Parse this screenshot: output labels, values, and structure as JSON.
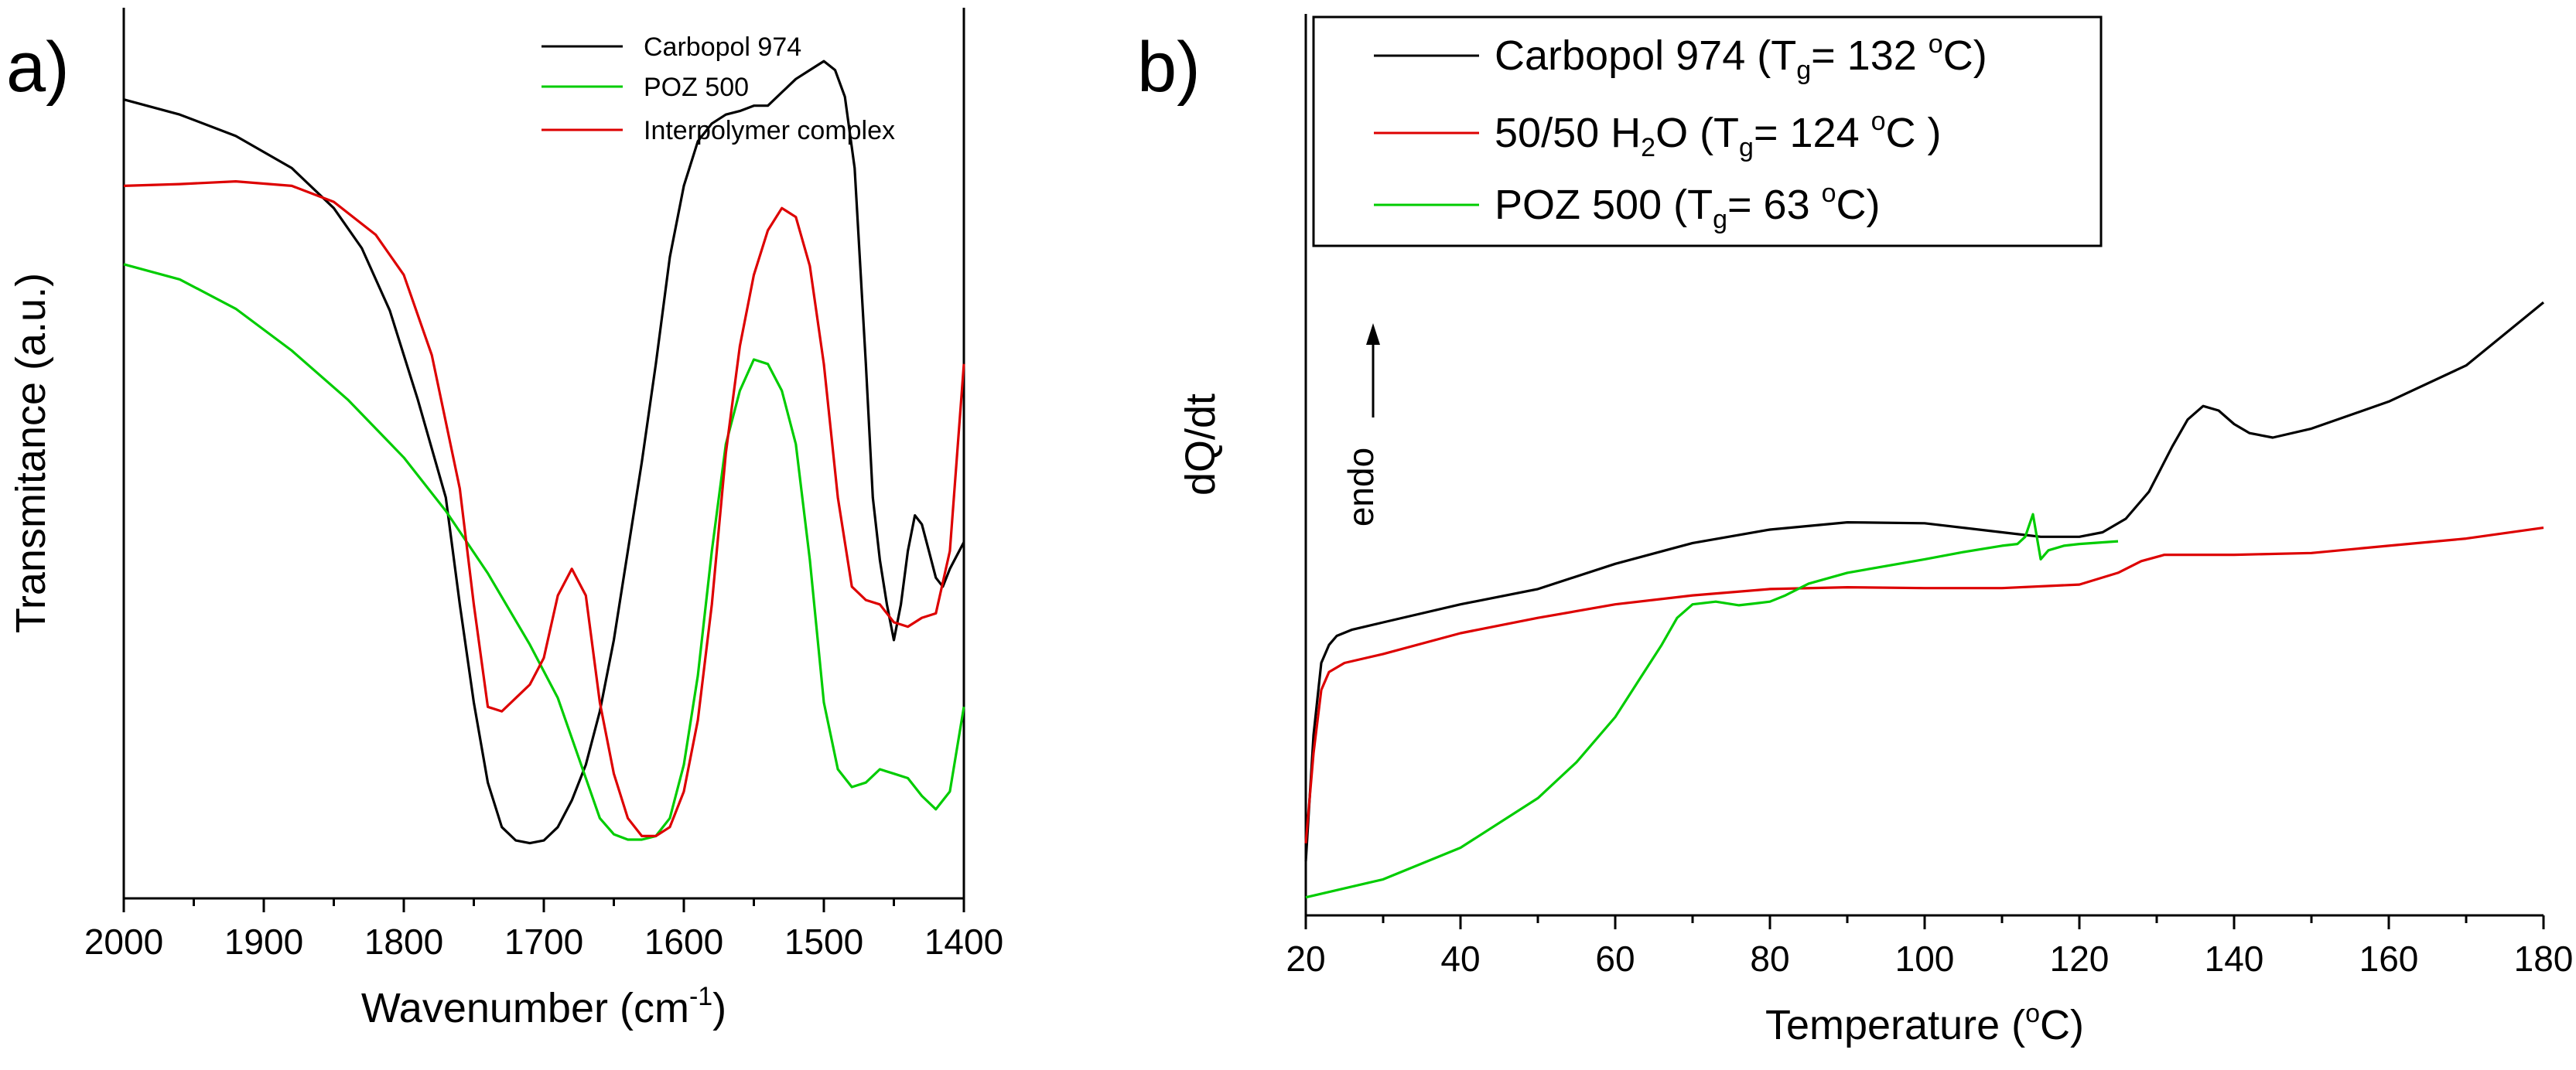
{
  "chart_data": [
    {
      "panel": "a)",
      "type": "line",
      "xlabel": "Wavenumber (cm",
      "xlabel_sup": "-1",
      "xlabel_end": ")",
      "ylabel": "Transmitance (a.u.)",
      "xlim": [
        2000,
        1400
      ],
      "ylim": [
        0,
        1
      ],
      "x_ticks": [
        2000,
        1900,
        1800,
        1700,
        1600,
        1500,
        1400
      ],
      "legend": [
        "Carbopol 974",
        "POZ 500",
        "Interpolymer complex"
      ],
      "series": [
        {
          "name": "Carbopol 974",
          "color": "#000000",
          "points": [
            [
              2000,
              0.897
            ],
            [
              1960,
              0.88
            ],
            [
              1920,
              0.856
            ],
            [
              1880,
              0.82
            ],
            [
              1850,
              0.775
            ],
            [
              1830,
              0.73
            ],
            [
              1810,
              0.66
            ],
            [
              1790,
              0.56
            ],
            [
              1770,
              0.45
            ],
            [
              1760,
              0.33
            ],
            [
              1750,
              0.22
            ],
            [
              1740,
              0.13
            ],
            [
              1730,
              0.08
            ],
            [
              1720,
              0.065
            ],
            [
              1710,
              0.062
            ],
            [
              1700,
              0.065
            ],
            [
              1690,
              0.08
            ],
            [
              1680,
              0.11
            ],
            [
              1670,
              0.15
            ],
            [
              1660,
              0.21
            ],
            [
              1650,
              0.29
            ],
            [
              1640,
              0.39
            ],
            [
              1630,
              0.49
            ],
            [
              1620,
              0.6
            ],
            [
              1610,
              0.72
            ],
            [
              1600,
              0.8
            ],
            [
              1590,
              0.85
            ],
            [
              1580,
              0.87
            ],
            [
              1570,
              0.88
            ],
            [
              1560,
              0.884
            ],
            [
              1550,
              0.89
            ],
            [
              1540,
              0.89
            ],
            [
              1530,
              0.905
            ],
            [
              1520,
              0.92
            ],
            [
              1510,
              0.93
            ],
            [
              1500,
              0.94
            ],
            [
              1492,
              0.93
            ],
            [
              1485,
              0.9
            ],
            [
              1478,
              0.82
            ],
            [
              1470,
              0.6
            ],
            [
              1465,
              0.45
            ],
            [
              1460,
              0.38
            ],
            [
              1455,
              0.33
            ],
            [
              1450,
              0.29
            ],
            [
              1445,
              0.33
            ],
            [
              1440,
              0.39
            ],
            [
              1435,
              0.43
            ],
            [
              1430,
              0.42
            ],
            [
              1425,
              0.39
            ],
            [
              1420,
              0.36
            ],
            [
              1415,
              0.35
            ],
            [
              1410,
              0.37
            ],
            [
              1400,
              0.4
            ]
          ]
        },
        {
          "name": "POZ 500",
          "color": "#00cc00",
          "points": [
            [
              2000,
              0.712
            ],
            [
              1960,
              0.695
            ],
            [
              1920,
              0.662
            ],
            [
              1880,
              0.615
            ],
            [
              1840,
              0.56
            ],
            [
              1800,
              0.495
            ],
            [
              1770,
              0.435
            ],
            [
              1740,
              0.365
            ],
            [
              1710,
              0.285
            ],
            [
              1690,
              0.225
            ],
            [
              1670,
              0.135
            ],
            [
              1660,
              0.09
            ],
            [
              1650,
              0.072
            ],
            [
              1640,
              0.066
            ],
            [
              1630,
              0.066
            ],
            [
              1620,
              0.07
            ],
            [
              1610,
              0.09
            ],
            [
              1600,
              0.15
            ],
            [
              1590,
              0.25
            ],
            [
              1580,
              0.39
            ],
            [
              1570,
              0.51
            ],
            [
              1560,
              0.57
            ],
            [
              1550,
              0.605
            ],
            [
              1540,
              0.6
            ],
            [
              1530,
              0.57
            ],
            [
              1520,
              0.51
            ],
            [
              1510,
              0.38
            ],
            [
              1500,
              0.22
            ],
            [
              1490,
              0.145
            ],
            [
              1480,
              0.125
            ],
            [
              1470,
              0.13
            ],
            [
              1460,
              0.145
            ],
            [
              1450,
              0.14
            ],
            [
              1440,
              0.135
            ],
            [
              1430,
              0.115
            ],
            [
              1420,
              0.1
            ],
            [
              1410,
              0.12
            ],
            [
              1400,
              0.215
            ]
          ]
        },
        {
          "name": "Interpolymer complex",
          "color": "#dd0000",
          "points": [
            [
              2000,
              0.8
            ],
            [
              1960,
              0.802
            ],
            [
              1920,
              0.805
            ],
            [
              1880,
              0.8
            ],
            [
              1850,
              0.782
            ],
            [
              1820,
              0.745
            ],
            [
              1800,
              0.7
            ],
            [
              1780,
              0.61
            ],
            [
              1760,
              0.46
            ],
            [
              1750,
              0.33
            ],
            [
              1740,
              0.215
            ],
            [
              1730,
              0.21
            ],
            [
              1720,
              0.225
            ],
            [
              1710,
              0.24
            ],
            [
              1700,
              0.27
            ],
            [
              1690,
              0.34
            ],
            [
              1680,
              0.37
            ],
            [
              1670,
              0.34
            ],
            [
              1660,
              0.22
            ],
            [
              1650,
              0.14
            ],
            [
              1640,
              0.09
            ],
            [
              1630,
              0.07
            ],
            [
              1620,
              0.07
            ],
            [
              1610,
              0.08
            ],
            [
              1600,
              0.12
            ],
            [
              1590,
              0.2
            ],
            [
              1580,
              0.33
            ],
            [
              1570,
              0.5
            ],
            [
              1560,
              0.62
            ],
            [
              1550,
              0.7
            ],
            [
              1540,
              0.75
            ],
            [
              1530,
              0.775
            ],
            [
              1520,
              0.765
            ],
            [
              1510,
              0.71
            ],
            [
              1500,
              0.6
            ],
            [
              1490,
              0.45
            ],
            [
              1480,
              0.35
            ],
            [
              1470,
              0.335
            ],
            [
              1460,
              0.33
            ],
            [
              1450,
              0.31
            ],
            [
              1440,
              0.305
            ],
            [
              1430,
              0.315
            ],
            [
              1420,
              0.32
            ],
            [
              1410,
              0.39
            ],
            [
              1400,
              0.6
            ]
          ]
        }
      ]
    },
    {
      "panel": "b)",
      "type": "line",
      "xlabel": "Temperature (",
      "xlabel_sup": "o",
      "xlabel_end": "C)",
      "ylabel": "dQ/dt",
      "annotation": "endo",
      "xlim": [
        20,
        180
      ],
      "ylim": [
        0,
        1
      ],
      "x_ticks": [
        20,
        40,
        60,
        80,
        100,
        120,
        140,
        160,
        180
      ],
      "legend": [
        {
          "pre": "Carbopol 974 (T",
          "sub": "g",
          "mid": "= 132 ",
          "sup": "o",
          "post": "C)"
        },
        {
          "pre": "50/50 H",
          "sub": "2",
          "mid": "O (T",
          "sub2": "g",
          "mid2": "= 124 ",
          "sup": "o",
          "post": "C )"
        },
        {
          "pre": "POZ 500 (T",
          "sub": "g",
          "mid": "= 63 ",
          "sup": "o",
          "post": "C)"
        }
      ],
      "series": [
        {
          "name": "Carbopol 974",
          "color": "#000000",
          "points": [
            [
              20,
              0.06
            ],
            [
              21,
              0.2
            ],
            [
              22,
              0.28
            ],
            [
              23,
              0.3
            ],
            [
              24,
              0.31
            ],
            [
              26,
              0.317
            ],
            [
              30,
              0.325
            ],
            [
              40,
              0.345
            ],
            [
              50,
              0.362
            ],
            [
              60,
              0.39
            ],
            [
              70,
              0.413
            ],
            [
              80,
              0.428
            ],
            [
              90,
              0.436
            ],
            [
              100,
              0.435
            ],
            [
              110,
              0.425
            ],
            [
              115,
              0.42
            ],
            [
              120,
              0.42
            ],
            [
              123,
              0.425
            ],
            [
              126,
              0.44
            ],
            [
              129,
              0.47
            ],
            [
              132,
              0.52
            ],
            [
              134,
              0.55
            ],
            [
              136,
              0.565
            ],
            [
              138,
              0.56
            ],
            [
              140,
              0.545
            ],
            [
              142,
              0.535
            ],
            [
              145,
              0.53
            ],
            [
              150,
              0.54
            ],
            [
              160,
              0.57
            ],
            [
              170,
              0.61
            ],
            [
              180,
              0.68
            ]
          ]
        },
        {
          "name": "50/50 H2O",
          "color": "#dd0000",
          "points": [
            [
              20,
              0.08
            ],
            [
              21,
              0.18
            ],
            [
              22,
              0.25
            ],
            [
              23,
              0.27
            ],
            [
              25,
              0.28
            ],
            [
              30,
              0.29
            ],
            [
              40,
              0.313
            ],
            [
              50,
              0.33
            ],
            [
              60,
              0.345
            ],
            [
              70,
              0.355
            ],
            [
              80,
              0.362
            ],
            [
              90,
              0.364
            ],
            [
              100,
              0.363
            ],
            [
              110,
              0.363
            ],
            [
              120,
              0.367
            ],
            [
              125,
              0.38
            ],
            [
              128,
              0.393
            ],
            [
              131,
              0.4
            ],
            [
              140,
              0.4
            ],
            [
              150,
              0.402
            ],
            [
              160,
              0.41
            ],
            [
              170,
              0.418
            ],
            [
              180,
              0.43
            ]
          ]
        },
        {
          "name": "POZ 500",
          "color": "#00cc00",
          "points": [
            [
              20,
              0.02
            ],
            [
              30,
              0.04
            ],
            [
              40,
              0.075
            ],
            [
              50,
              0.13
            ],
            [
              55,
              0.17
            ],
            [
              60,
              0.22
            ],
            [
              63,
              0.26
            ],
            [
              66,
              0.3
            ],
            [
              68,
              0.33
            ],
            [
              70,
              0.345
            ],
            [
              73,
              0.348
            ],
            [
              76,
              0.344
            ],
            [
              78,
              0.346
            ],
            [
              80,
              0.348
            ],
            [
              82,
              0.355
            ],
            [
              85,
              0.368
            ],
            [
              90,
              0.38
            ],
            [
              100,
              0.395
            ],
            [
              105,
              0.403
            ],
            [
              110,
              0.41
            ],
            [
              112,
              0.412
            ],
            [
              113,
              0.42
            ],
            [
              114,
              0.445
            ],
            [
              114.5,
              0.42
            ],
            [
              115,
              0.395
            ],
            [
              116,
              0.405
            ],
            [
              118,
              0.41
            ],
            [
              120,
              0.412
            ],
            [
              125,
              0.415
            ]
          ]
        }
      ]
    }
  ]
}
